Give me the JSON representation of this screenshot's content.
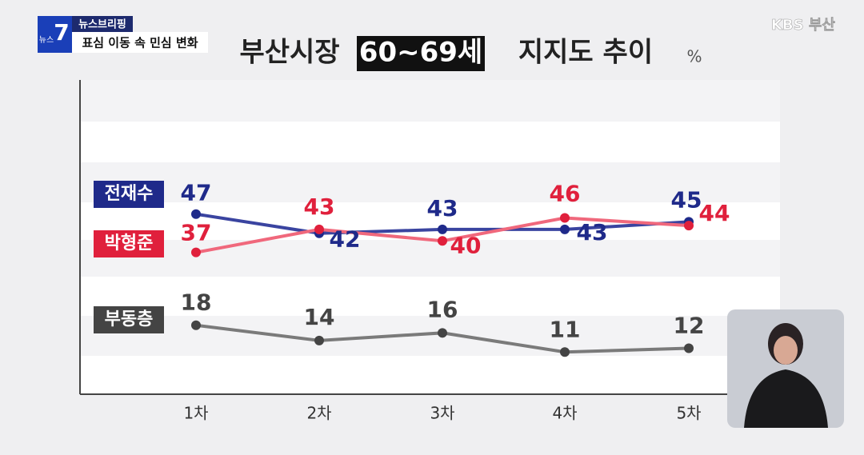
{
  "broadcast": {
    "logo_small": "뉴스",
    "logo_number": "7",
    "program": "뉴스브리핑",
    "headline": "표심 이동 속 민심 변화",
    "station": "KBS 부산"
  },
  "chart_data": {
    "type": "line",
    "title_parts": [
      "부산시장",
      "60~69세",
      "지지도 추이"
    ],
    "unit": "%",
    "categories": [
      "1차",
      "2차",
      "3차",
      "4차",
      "5차"
    ],
    "series": [
      {
        "name": "전재수",
        "color": "#1f2a8a",
        "line_color": "#3a44a0",
        "values": [
          47,
          42,
          43,
          43,
          45
        ]
      },
      {
        "name": "박형준",
        "color": "#e0203c",
        "line_color": "#f0687c",
        "values": [
          37,
          43,
          40,
          46,
          44
        ]
      },
      {
        "name": "부동층",
        "color": "#444444",
        "line_color": "#7a7a7a",
        "values": [
          18,
          14,
          16,
          11,
          12
        ]
      }
    ],
    "ylim": [
      0,
      82
    ]
  }
}
